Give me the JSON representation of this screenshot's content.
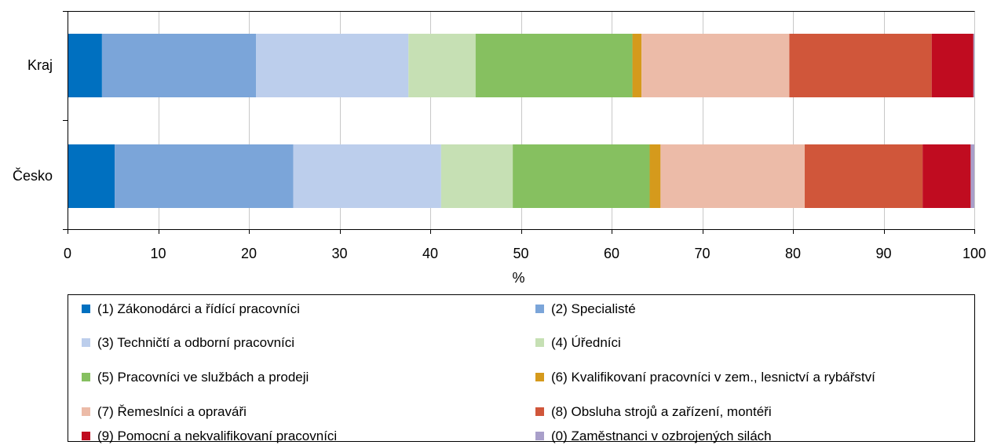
{
  "chart_data": {
    "type": "bar",
    "orientation": "horizontal",
    "stacked": true,
    "xlabel": "%",
    "ylabel": "",
    "xlim": [
      0,
      100
    ],
    "xticks": [
      "0",
      "10",
      "20",
      "30",
      "40",
      "50",
      "60",
      "70",
      "80",
      "90",
      "100"
    ],
    "grid": "vertical",
    "legend_position": "bottom",
    "categories": [
      "Kraj",
      "Česko"
    ],
    "series": [
      {
        "name": "(1) Zákonodárci a řídící pracovníci",
        "color": "#0070C0",
        "values": [
          3.8,
          5.2
        ]
      },
      {
        "name": "(2) Specialisté",
        "color": "#7BA5D9",
        "values": [
          17.0,
          19.7
        ]
      },
      {
        "name": "(3) Techničtí a odborní pracovníci",
        "color": "#BCCEEC",
        "values": [
          16.8,
          16.3
        ]
      },
      {
        "name": "(4) Úředníci",
        "color": "#C6E0B4",
        "values": [
          7.4,
          7.9
        ]
      },
      {
        "name": "(5) Pracovníci ve službách a prodeji",
        "color": "#86C060",
        "values": [
          17.3,
          15.1
        ]
      },
      {
        "name": "(6) Kvalifikovaní pracovníci v zem., lesnictví a rybářství",
        "color": "#D59A1C",
        "values": [
          1.0,
          1.2
        ]
      },
      {
        "name": "(7) Řemeslníci a opraváři",
        "color": "#ECBBA8",
        "values": [
          16.3,
          15.9
        ]
      },
      {
        "name": "(8) Obsluha strojů a zařízení, montéři",
        "color": "#D0563A",
        "values": [
          15.7,
          13.0
        ]
      },
      {
        "name": "(9) Pomocní a nekvalifikovaní pracovníci",
        "color": "#C00C20",
        "values": [
          4.6,
          5.3
        ]
      },
      {
        "name": "(0) Zaměstnanci v ozbrojených silách",
        "color": "#A99FCA",
        "values": [
          0.1,
          0.4
        ]
      }
    ]
  }
}
